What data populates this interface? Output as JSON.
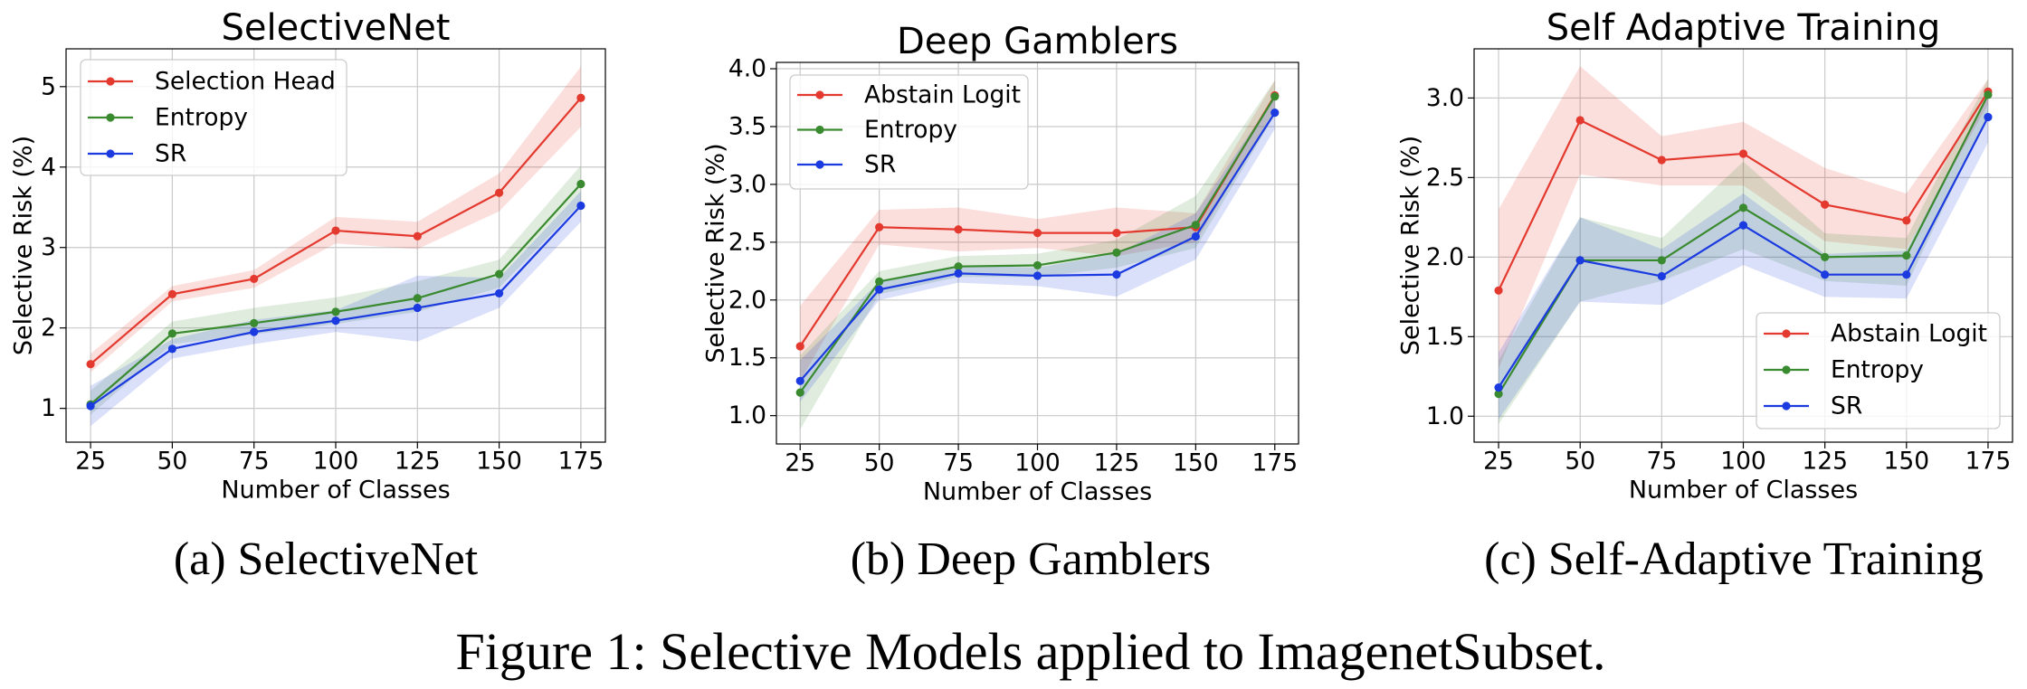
{
  "figure": {
    "subcaptions": [
      "(a) SelectiveNet",
      "(b) Deep Gamblers",
      "(c) Self-Adaptive Training"
    ],
    "caption": "Figure 1: Selective Models applied to ImagenetSubset."
  },
  "chart_data": [
    {
      "type": "line",
      "title": "SelectiveNet",
      "xlabel": "Number of Classes",
      "ylabel": "Selective Risk (%)",
      "x": [
        25,
        50,
        75,
        100,
        125,
        150,
        175
      ],
      "xtick_labels": [
        "25",
        "50",
        "75",
        "100",
        "125",
        "150",
        "175"
      ],
      "yticks": [
        1,
        2,
        3,
        4,
        5
      ],
      "ytick_labels": [
        "1",
        "2",
        "3",
        "4",
        "5"
      ],
      "xlim": [
        17.5,
        182.5
      ],
      "ylim": [
        0.58,
        5.47
      ],
      "grid": true,
      "legend": "upper left",
      "series": [
        {
          "name": "Selection Head",
          "color": "#e4392e",
          "values": [
            1.55,
            2.42,
            2.61,
            3.21,
            3.14,
            3.68,
            4.86
          ],
          "band_low": [
            1.45,
            2.33,
            2.5,
            3.05,
            2.98,
            3.45,
            4.5
          ],
          "band_high": [
            1.68,
            2.52,
            2.72,
            3.38,
            3.32,
            3.92,
            5.25
          ]
        },
        {
          "name": "Entropy",
          "color": "#3a8a30",
          "values": [
            1.05,
            1.93,
            2.06,
            2.2,
            2.37,
            2.67,
            3.79
          ],
          "band_low": [
            0.92,
            1.8,
            1.92,
            2.05,
            2.2,
            2.5,
            3.55
          ],
          "band_high": [
            1.22,
            2.08,
            2.25,
            2.38,
            2.58,
            2.85,
            4.02
          ]
        },
        {
          "name": "SR",
          "color": "#1b3be0",
          "values": [
            1.03,
            1.74,
            1.95,
            2.09,
            2.25,
            2.43,
            3.52
          ],
          "band_low": [
            0.78,
            1.62,
            1.8,
            1.95,
            1.83,
            2.25,
            3.32
          ],
          "band_high": [
            1.28,
            1.86,
            2.1,
            2.22,
            2.65,
            2.62,
            3.7
          ]
        }
      ]
    },
    {
      "type": "line",
      "title": "Deep Gamblers",
      "xlabel": "Number of Classes",
      "ylabel": "Selective Risk (%)",
      "x": [
        25,
        50,
        75,
        100,
        125,
        150,
        175
      ],
      "xtick_labels": [
        "25",
        "50",
        "75",
        "100",
        "125",
        "150",
        "175"
      ],
      "yticks": [
        1.0,
        1.5,
        2.0,
        2.5,
        3.0,
        3.5,
        4.0
      ],
      "ytick_labels": [
        "1.0",
        "1.5",
        "2.0",
        "2.5",
        "3.0",
        "3.5",
        "4.0"
      ],
      "xlim": [
        17.5,
        182.5
      ],
      "ylim": [
        0.755,
        4.055
      ],
      "grid": true,
      "legend": "upper left",
      "series": [
        {
          "name": "Abstain Logit",
          "color": "#e4392e",
          "values": [
            1.6,
            2.63,
            2.61,
            2.58,
            2.58,
            2.63,
            3.77
          ],
          "band_low": [
            1.3,
            2.48,
            2.42,
            2.45,
            2.38,
            2.5,
            3.65
          ],
          "band_high": [
            1.95,
            2.78,
            2.8,
            2.7,
            2.8,
            2.75,
            3.9
          ]
        },
        {
          "name": "Entropy",
          "color": "#3a8a30",
          "values": [
            1.2,
            2.16,
            2.29,
            2.3,
            2.41,
            2.65,
            3.76
          ],
          "band_low": [
            0.88,
            2.05,
            2.2,
            2.2,
            2.28,
            2.45,
            3.6
          ],
          "band_high": [
            1.52,
            2.25,
            2.38,
            2.4,
            2.52,
            2.9,
            3.9
          ]
        },
        {
          "name": "SR",
          "color": "#1b3be0",
          "values": [
            1.3,
            2.09,
            2.23,
            2.21,
            2.22,
            2.55,
            3.62
          ],
          "band_low": [
            1.12,
            2.0,
            2.15,
            2.12,
            2.03,
            2.35,
            3.48
          ],
          "band_high": [
            1.48,
            2.16,
            2.3,
            2.28,
            2.4,
            2.75,
            3.76
          ]
        }
      ]
    },
    {
      "type": "line",
      "title": "Self Adaptive Training",
      "xlabel": "Number of Classes",
      "ylabel": "Selective Risk (%)",
      "x": [
        25,
        50,
        75,
        100,
        125,
        150,
        175
      ],
      "xtick_labels": [
        "25",
        "50",
        "75",
        "100",
        "125",
        "150",
        "175"
      ],
      "yticks": [
        1.0,
        1.5,
        2.0,
        2.5,
        3.0
      ],
      "ytick_labels": [
        "1.0",
        "1.5",
        "2.0",
        "2.5",
        "3.0"
      ],
      "xlim": [
        17.5,
        182.5
      ],
      "ylim": [
        0.837,
        3.309
      ],
      "grid": true,
      "legend": "lower right",
      "series": [
        {
          "name": "Abstain Logit",
          "color": "#e4392e",
          "values": [
            1.79,
            2.86,
            2.61,
            2.65,
            2.33,
            2.23,
            3.04
          ],
          "band_low": [
            1.3,
            2.52,
            2.45,
            2.45,
            2.1,
            2.05,
            2.96
          ],
          "band_high": [
            2.3,
            3.2,
            2.76,
            2.85,
            2.56,
            2.4,
            3.12
          ]
        },
        {
          "name": "Entropy",
          "color": "#3a8a30",
          "values": [
            1.14,
            1.98,
            1.98,
            2.31,
            2.0,
            2.01,
            3.02
          ],
          "band_low": [
            0.95,
            1.72,
            1.85,
            2.05,
            1.85,
            1.82,
            2.9
          ],
          "band_high": [
            1.35,
            2.25,
            2.12,
            2.6,
            2.15,
            2.12,
            3.12
          ]
        },
        {
          "name": "SR",
          "color": "#1b3be0",
          "values": [
            1.18,
            1.98,
            1.88,
            2.2,
            1.89,
            1.89,
            2.88
          ],
          "band_low": [
            0.98,
            1.72,
            1.7,
            1.95,
            1.75,
            1.74,
            2.72
          ],
          "band_high": [
            1.4,
            2.25,
            2.05,
            2.4,
            2.02,
            2.04,
            3.02
          ]
        }
      ]
    }
  ]
}
